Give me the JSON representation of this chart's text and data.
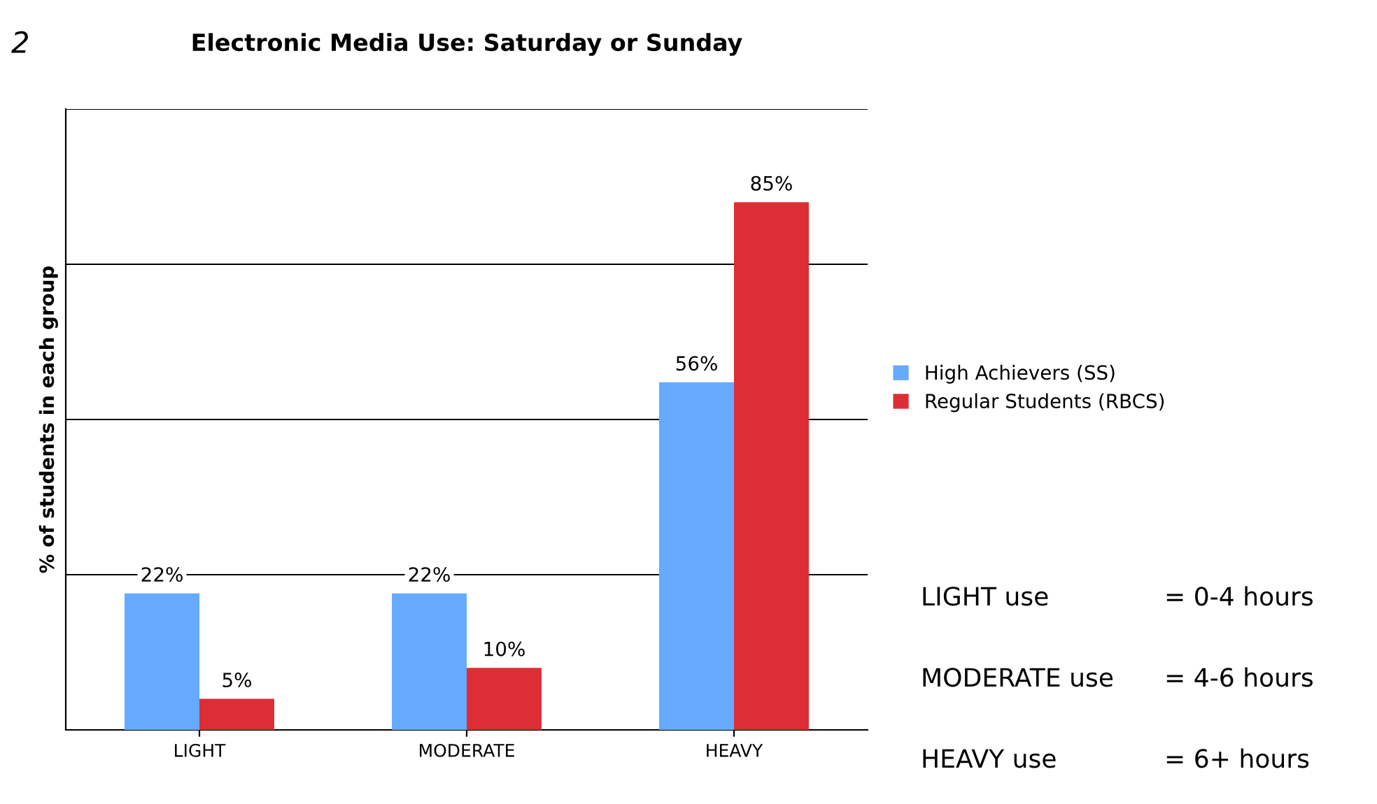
{
  "chart_data": {
    "type": "bar",
    "title": "Electronic Media Use: Saturday or Sunday",
    "ylabel": "% of students in each group",
    "categories": [
      "LIGHT",
      "MODERATE",
      "HEAVY"
    ],
    "series": [
      {
        "name": "High Achievers (SS)",
        "color": "#66aaff",
        "values": [
          22,
          22,
          56
        ],
        "value_labels": [
          "22%",
          "22%",
          "56%"
        ]
      },
      {
        "name": "Regular Students (RBCS)",
        "color": "#dd2e35",
        "values": [
          5,
          10,
          85
        ],
        "value_labels": [
          "5%",
          "10%",
          "85%"
        ]
      }
    ],
    "ylim": [
      0,
      100
    ],
    "yticks": [
      {
        "value": 0,
        "label": null
      },
      {
        "value": 25,
        "label": null
      },
      {
        "value": 50,
        "label": null
      },
      {
        "value": 75,
        "label": null
      },
      {
        "value": 100,
        "label": null
      }
    ],
    "tick_labels": "x",
    "grid": "y",
    "legend": "right",
    "annotations": [
      "2",
      "LIGHT use",
      "= 0-4 hours",
      "MODERATE use",
      "= 4-6 hours",
      "HEAVY use",
      "= 6+ hours"
    ]
  }
}
